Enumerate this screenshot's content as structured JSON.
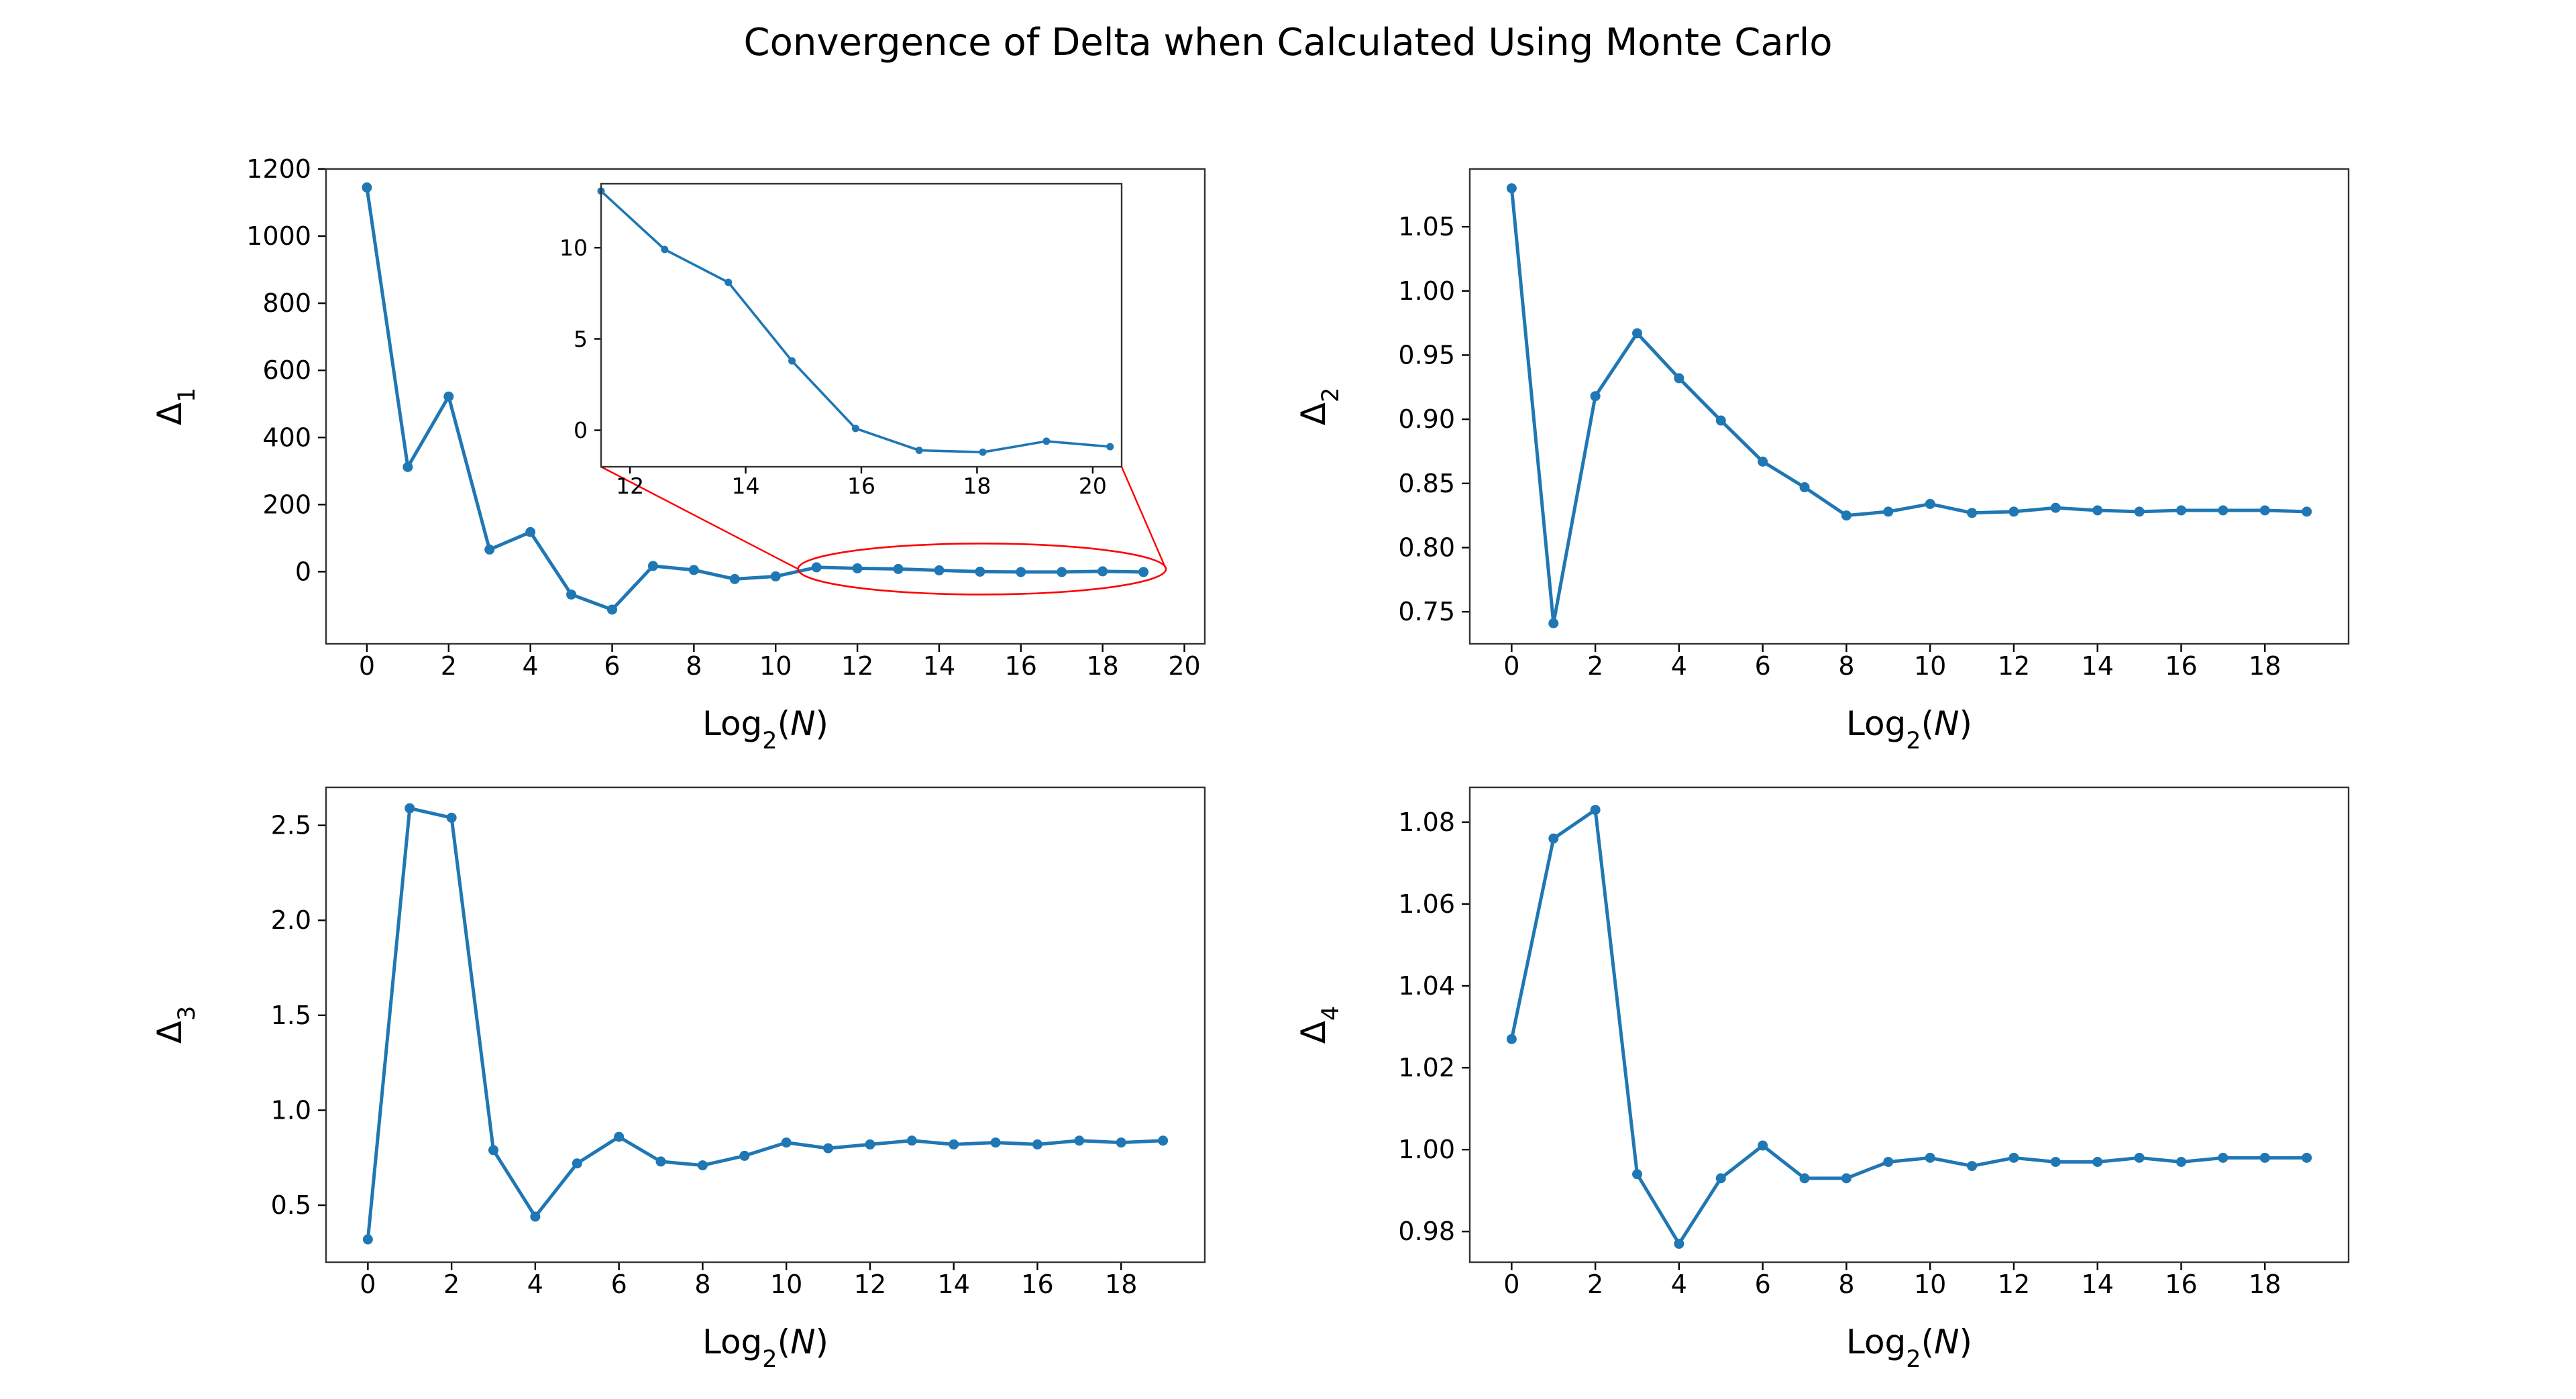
{
  "figure": {
    "suptitle": "Convergence of Delta when Calculated Using Monte Carlo",
    "line_color": "#1f77b4",
    "zoom_marker_color": "#ff0000"
  },
  "chart_data": [
    {
      "type": "line",
      "panel": "top-left",
      "xlabel": "Log2(N)",
      "ylabel": "Δ1",
      "xlim": [
        -1,
        20.5
      ],
      "ylim": [
        -215,
        1200
      ],
      "xticks": [
        0,
        2,
        4,
        6,
        8,
        10,
        12,
        14,
        16,
        18,
        20
      ],
      "yticks": [
        0,
        200,
        400,
        600,
        800,
        1000,
        1200
      ],
      "grid": false,
      "x": [
        0,
        1,
        2,
        3,
        4,
        5,
        6,
        7,
        8,
        9,
        10,
        11,
        12,
        13,
        14,
        15,
        16,
        17,
        18,
        19
      ],
      "y": [
        1145,
        312,
        522,
        66,
        118,
        -68,
        -113,
        17,
        5,
        -22,
        -14,
        13,
        10,
        8,
        4,
        0,
        -1,
        -1,
        1,
        -1
      ],
      "inset": {
        "xlim": [
          11.5,
          20.5
        ],
        "ylim": [
          -2,
          13.5
        ],
        "xticks": [
          12,
          14,
          16,
          18,
          20
        ],
        "yticks": [
          0,
          5,
          10
        ],
        "x": [
          11.5,
          12.6,
          13.7,
          14.8,
          15.9,
          17.0,
          18.1,
          19.2,
          20.3
        ],
        "y": [
          13.1,
          9.9,
          8.1,
          3.8,
          0.1,
          -1.1,
          -1.2,
          -0.6,
          -0.9
        ]
      }
    },
    {
      "type": "line",
      "panel": "top-right",
      "xlabel": "Log2(N)",
      "ylabel": "Δ2",
      "xlim": [
        -1,
        20
      ],
      "ylim": [
        0.725,
        1.095
      ],
      "xticks": [
        0,
        2,
        4,
        6,
        8,
        10,
        12,
        14,
        16,
        18
      ],
      "yticks": [
        0.75,
        0.8,
        0.85,
        0.9,
        0.95,
        1.0,
        1.05
      ],
      "ytick_labels": [
        "0.75",
        "0.80",
        "0.85",
        "0.90",
        "0.95",
        "1.00",
        "1.05"
      ],
      "grid": false,
      "x": [
        0,
        1,
        2,
        3,
        4,
        5,
        6,
        7,
        8,
        9,
        10,
        11,
        12,
        13,
        14,
        15,
        16,
        17,
        18,
        19
      ],
      "y": [
        1.08,
        0.741,
        0.918,
        0.967,
        0.932,
        0.899,
        0.867,
        0.847,
        0.825,
        0.828,
        0.834,
        0.827,
        0.828,
        0.831,
        0.829,
        0.828,
        0.829,
        0.829,
        0.829,
        0.828
      ]
    },
    {
      "type": "line",
      "panel": "bottom-left",
      "xlabel": "Log2(N)",
      "ylabel": "Δ3",
      "xlim": [
        -1,
        20
      ],
      "ylim": [
        0.2,
        2.7
      ],
      "xticks": [
        0,
        2,
        4,
        6,
        8,
        10,
        12,
        14,
        16,
        18
      ],
      "yticks": [
        0.5,
        1.0,
        1.5,
        2.0,
        2.5
      ],
      "ytick_labels": [
        "0.5",
        "1.0",
        "1.5",
        "2.0",
        "2.5"
      ],
      "grid": false,
      "x": [
        0,
        1,
        2,
        3,
        4,
        5,
        6,
        7,
        8,
        9,
        10,
        11,
        12,
        13,
        14,
        15,
        16,
        17,
        18,
        19
      ],
      "y": [
        0.32,
        2.59,
        2.54,
        0.79,
        0.44,
        0.72,
        0.86,
        0.73,
        0.71,
        0.76,
        0.83,
        0.8,
        0.82,
        0.84,
        0.82,
        0.83,
        0.82,
        0.84,
        0.83,
        0.84
      ]
    },
    {
      "type": "line",
      "panel": "bottom-right",
      "xlabel": "Log2(N)",
      "ylabel": "Δ4",
      "xlim": [
        -1,
        20
      ],
      "ylim": [
        0.9725,
        1.0885
      ],
      "xticks": [
        0,
        2,
        4,
        6,
        8,
        10,
        12,
        14,
        16,
        18
      ],
      "yticks": [
        0.98,
        1.0,
        1.02,
        1.04,
        1.06,
        1.08
      ],
      "ytick_labels": [
        "0.98",
        "1.00",
        "1.02",
        "1.04",
        "1.06",
        "1.08"
      ],
      "grid": false,
      "x": [
        0,
        1,
        2,
        3,
        4,
        5,
        6,
        7,
        8,
        9,
        10,
        11,
        12,
        13,
        14,
        15,
        16,
        17,
        18,
        19
      ],
      "y": [
        1.027,
        1.076,
        1.083,
        0.994,
        0.977,
        0.993,
        1.001,
        0.993,
        0.993,
        0.997,
        0.998,
        0.996,
        0.998,
        0.997,
        0.997,
        0.998,
        0.997,
        0.998,
        0.998,
        0.998
      ]
    }
  ]
}
